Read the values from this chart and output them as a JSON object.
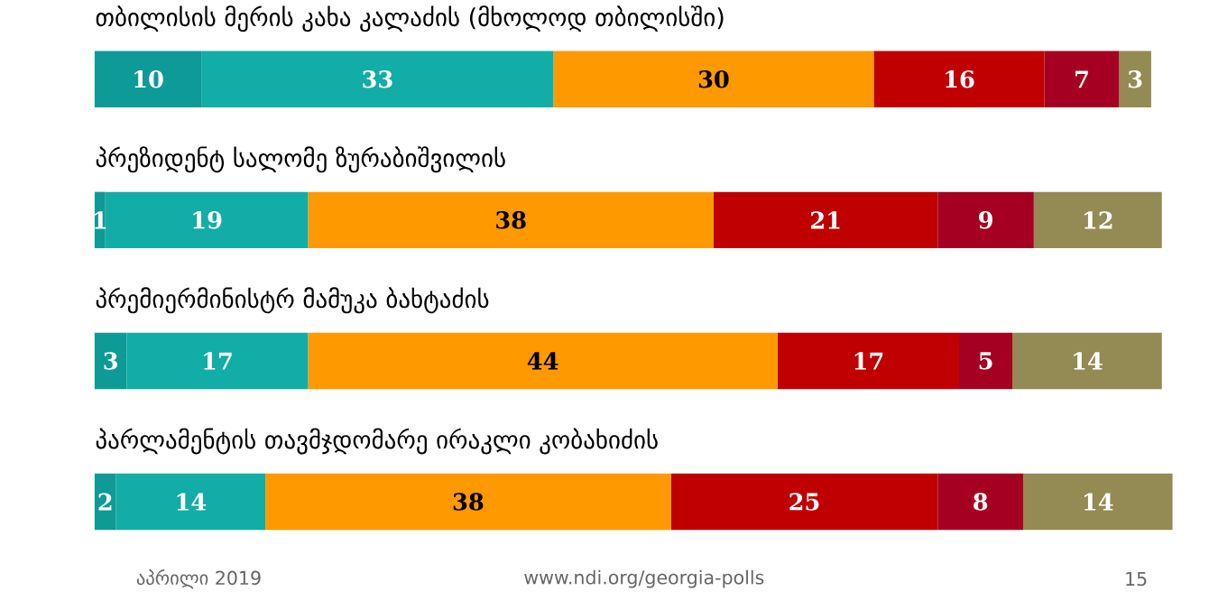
{
  "chart_data": {
    "type": "bar",
    "orientation": "horizontal",
    "stacked": true,
    "data_labels": true,
    "categories": [
      "თბილისის მერის კახა კალაძის (მხოლოდ თბილისში)",
      "პრეზიდენტ სალომე ზურაბიშვილის",
      "პრემიერმინისტრ მამუკა ბახტაძის",
      "პარლამენტის თავმჯდომარე ირაკლი კობახიძის"
    ],
    "series": [
      {
        "color": "#0e9a97",
        "values": [
          10,
          1,
          3,
          2
        ]
      },
      {
        "color": "#12ada6",
        "values": [
          33,
          19,
          17,
          14
        ]
      },
      {
        "color": "#ff9900",
        "values": [
          30,
          38,
          44,
          38
        ]
      },
      {
        "color": "#c00000",
        "values": [
          16,
          21,
          17,
          25
        ]
      },
      {
        "color": "#a50021",
        "values": [
          7,
          9,
          5,
          8
        ]
      },
      {
        "color": "#948a54",
        "values": [
          3,
          12,
          14,
          14
        ]
      }
    ],
    "annotations": [
      "აპრილი 2019",
      "www.ndi.org/georgia-polls",
      "15"
    ]
  }
}
